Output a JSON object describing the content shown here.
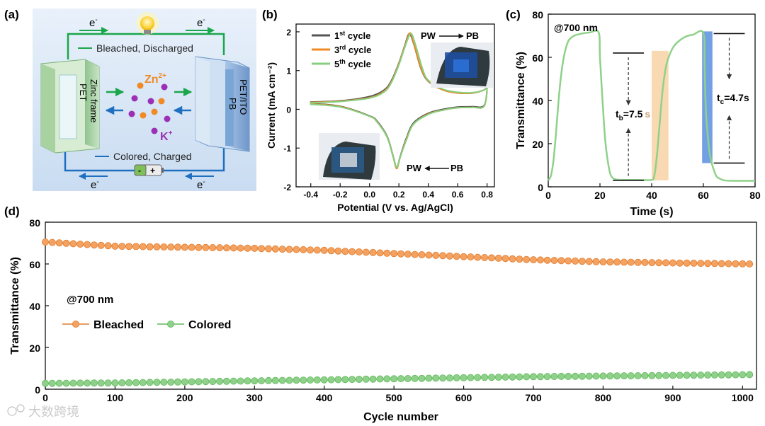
{
  "panels": {
    "a": {
      "label": "(a)",
      "electron": "e",
      "electron_sup": "-",
      "bleached_text": "Bleached, Discharged",
      "colored_text": "Colored, Charged",
      "left_electrode_1": "Zinc frame",
      "left_electrode_2": "PET",
      "right_electrode_1": "PET/ITO",
      "right_electrode_2": "PB",
      "zn_ion": "Zn",
      "zn_sup": "2+",
      "k_ion": "K",
      "k_sup": "+",
      "battery_minus": "-",
      "battery_plus": "+"
    },
    "b": {
      "label": "(b)",
      "annot_top": "PW",
      "annot_top_to": "PB",
      "annot_bottom": "PW",
      "annot_bottom_from": "PB"
    },
    "c": {
      "label": "(c)",
      "wavelength": "@700 nm",
      "tb_label": "t",
      "tb_sub": "b",
      "tb_value": "=7.5",
      "tb_unit": "s",
      "tc_label": "t",
      "tc_sub": "c",
      "tc_value": "=4.7s"
    },
    "d": {
      "label": "(d)",
      "wavelength": "@700 nm"
    }
  },
  "colors": {
    "bleached": "#f4a261",
    "colored": "#8fd18a",
    "cycle1": "#555555",
    "cycle3": "#f08a24",
    "cycle5": "#86cf7e",
    "blue_band": "#5b8fe0",
    "orange_band": "#f8cf9e",
    "circuit_green": "#1aa64a",
    "circuit_blue": "#1f6fc1"
  },
  "watermark": "大数跨境",
  "chart_data": [
    {
      "id": "b",
      "type": "line",
      "xlabel": "Potential (V vs. Ag/AgCl)",
      "ylabel": "Current  (mA cm⁻²)",
      "xlim": [
        -0.5,
        0.85
      ],
      "ylim": [
        -2.0,
        2.2
      ],
      "xticks": [
        "-0.4",
        "-0.2",
        "0.0",
        "0.2",
        "0.4",
        "0.6",
        "0.8"
      ],
      "xtick_values": [
        -0.4,
        -0.2,
        0.0,
        0.2,
        0.4,
        0.6,
        0.8
      ],
      "yticks": [
        "-2",
        "-1",
        "0",
        "1",
        "2"
      ],
      "ytick_values": [
        -2,
        -1,
        0,
        1,
        2
      ],
      "legend": [
        {
          "name": "1",
          "sup": "st",
          "rest": " cycle"
        },
        {
          "name": "3",
          "sup": "rd",
          "rest": " cycle"
        },
        {
          "name": "5",
          "sup": "th",
          "rest": " cycle"
        }
      ],
      "series": [
        {
          "name": "1st cycle",
          "points": [
            [
              -0.4,
              0.19
            ],
            [
              -0.2,
              0.22
            ],
            [
              0.0,
              0.33
            ],
            [
              0.1,
              0.5
            ],
            [
              0.15,
              0.75
            ],
            [
              0.2,
              1.2
            ],
            [
              0.24,
              1.65
            ],
            [
              0.27,
              1.95
            ],
            [
              0.3,
              1.7
            ],
            [
              0.35,
              1.05
            ],
            [
              0.4,
              0.72
            ],
            [
              0.5,
              0.5
            ],
            [
              0.6,
              0.42
            ],
            [
              0.7,
              0.42
            ],
            [
              0.78,
              0.5
            ],
            [
              0.8,
              0.58
            ],
            [
              0.78,
              0.1
            ],
            [
              0.7,
              0.07
            ],
            [
              0.6,
              0.06
            ],
            [
              0.5,
              0.0
            ],
            [
              0.4,
              -0.1
            ],
            [
              0.3,
              -0.35
            ],
            [
              0.25,
              -0.75
            ],
            [
              0.21,
              -1.2
            ],
            [
              0.185,
              -1.5
            ],
            [
              0.16,
              -1.2
            ],
            [
              0.12,
              -0.7
            ],
            [
              0.05,
              -0.3
            ],
            [
              0.0,
              -0.17
            ],
            [
              -0.2,
              0.08
            ],
            [
              -0.4,
              0.15
            ]
          ]
        },
        {
          "name": "3rd cycle",
          "points": [
            [
              -0.4,
              0.18
            ],
            [
              -0.2,
              0.21
            ],
            [
              0.0,
              0.3
            ],
            [
              0.1,
              0.47
            ],
            [
              0.15,
              0.72
            ],
            [
              0.2,
              1.18
            ],
            [
              0.24,
              1.63
            ],
            [
              0.275,
              1.97
            ],
            [
              0.3,
              1.72
            ],
            [
              0.35,
              1.07
            ],
            [
              0.4,
              0.73
            ],
            [
              0.5,
              0.5
            ],
            [
              0.6,
              0.42
            ],
            [
              0.7,
              0.42
            ],
            [
              0.78,
              0.5
            ],
            [
              0.8,
              0.58
            ],
            [
              0.78,
              0.08
            ],
            [
              0.7,
              0.05
            ],
            [
              0.6,
              0.04
            ],
            [
              0.5,
              -0.02
            ],
            [
              0.4,
              -0.12
            ],
            [
              0.3,
              -0.38
            ],
            [
              0.25,
              -0.78
            ],
            [
              0.21,
              -1.22
            ],
            [
              0.185,
              -1.53
            ],
            [
              0.16,
              -1.22
            ],
            [
              0.12,
              -0.72
            ],
            [
              0.05,
              -0.32
            ],
            [
              0.0,
              -0.18
            ],
            [
              -0.2,
              0.07
            ],
            [
              -0.4,
              0.14
            ]
          ]
        },
        {
          "name": "5th cycle",
          "points": [
            [
              -0.4,
              0.17
            ],
            [
              -0.2,
              0.2
            ],
            [
              0.0,
              0.29
            ],
            [
              0.1,
              0.45
            ],
            [
              0.15,
              0.7
            ],
            [
              0.2,
              1.15
            ],
            [
              0.24,
              1.6
            ],
            [
              0.28,
              1.95
            ],
            [
              0.31,
              1.7
            ],
            [
              0.36,
              1.05
            ],
            [
              0.4,
              0.75
            ],
            [
              0.5,
              0.52
            ],
            [
              0.6,
              0.44
            ],
            [
              0.7,
              0.43
            ],
            [
              0.78,
              0.5
            ],
            [
              0.8,
              0.58
            ],
            [
              0.78,
              0.08
            ],
            [
              0.7,
              0.05
            ],
            [
              0.6,
              0.04
            ],
            [
              0.5,
              -0.02
            ],
            [
              0.4,
              -0.13
            ],
            [
              0.3,
              -0.38
            ],
            [
              0.25,
              -0.8
            ],
            [
              0.21,
              -1.22
            ],
            [
              0.185,
              -1.5
            ],
            [
              0.16,
              -1.22
            ],
            [
              0.12,
              -0.72
            ],
            [
              0.05,
              -0.32
            ],
            [
              0.0,
              -0.18
            ],
            [
              -0.2,
              0.06
            ],
            [
              -0.4,
              0.13
            ]
          ]
        }
      ]
    },
    {
      "id": "c",
      "type": "line",
      "xlabel": "Time (s)",
      "ylabel": "Transmittance (%)",
      "xlim": [
        0,
        80
      ],
      "ylim": [
        0,
        80
      ],
      "xticks": [
        "0",
        "20",
        "40",
        "60",
        "80"
      ],
      "xtick_values": [
        0,
        20,
        40,
        60,
        80
      ],
      "yticks": [
        "0",
        "20",
        "40",
        "60",
        "80"
      ],
      "ytick_values": [
        0,
        20,
        40,
        60,
        80
      ],
      "series": [
        {
          "name": "",
          "points": [
            [
              0,
              3
            ],
            [
              1,
              5
            ],
            [
              2,
              12
            ],
            [
              3,
              25
            ],
            [
              4,
              40
            ],
            [
              5,
              52
            ],
            [
              6,
              60
            ],
            [
              7,
              65
            ],
            [
              8,
              68
            ],
            [
              10,
              70
            ],
            [
              13,
              71
            ],
            [
              16,
              71.5
            ],
            [
              19.5,
              71.5
            ],
            [
              20,
              60
            ],
            [
              21,
              40
            ],
            [
              22,
              22
            ],
            [
              23,
              12
            ],
            [
              24,
              6
            ],
            [
              25,
              4
            ],
            [
              26,
              3.5
            ],
            [
              28,
              3.2
            ],
            [
              35,
              3.2
            ],
            [
              40,
              3.2
            ],
            [
              41,
              5
            ],
            [
              42,
              14
            ],
            [
              43,
              28
            ],
            [
              44,
              42
            ],
            [
              45,
              52
            ],
            [
              46,
              58
            ],
            [
              48,
              64
            ],
            [
              50,
              67
            ],
            [
              53,
              69.5
            ],
            [
              56,
              70.5
            ],
            [
              60,
              71.2
            ],
            [
              60.5,
              55
            ],
            [
              61,
              35
            ],
            [
              62,
              20
            ],
            [
              63,
              12
            ],
            [
              64,
              8
            ],
            [
              65,
              5
            ],
            [
              66,
              4
            ],
            [
              68,
              3
            ],
            [
              72,
              2.8
            ],
            [
              80,
              2.8
            ]
          ]
        }
      ],
      "bands": [
        {
          "x": [
            40,
            46.5
          ],
          "y": [
            3,
            63
          ],
          "color": "orange"
        },
        {
          "x": [
            59.5,
            63.5
          ],
          "y": [
            11,
            72
          ],
          "color": "blue"
        }
      ],
      "annotations": [
        {
          "text": "tb=7.5 s",
          "x_range": [
            40,
            47.5
          ]
        },
        {
          "text": "tc=4.7s",
          "x_range": [
            60,
            64.7
          ]
        }
      ]
    },
    {
      "id": "d",
      "type": "scatter",
      "xlabel": "Cycle number",
      "ylabel": "Transmittance (%)",
      "xlim": [
        0,
        1020
      ],
      "ylim": [
        0,
        80
      ],
      "xticks": [
        "0",
        "100",
        "200",
        "300",
        "400",
        "500",
        "600",
        "700",
        "800",
        "900",
        "1000"
      ],
      "xtick_values": [
        0,
        100,
        200,
        300,
        400,
        500,
        600,
        700,
        800,
        900,
        1000
      ],
      "yticks": [
        "0",
        "20",
        "40",
        "60",
        "80"
      ],
      "ytick_values": [
        0,
        20,
        40,
        60,
        80
      ],
      "legend": [
        "Bleached",
        "Colored"
      ],
      "series": [
        {
          "name": "Bleached",
          "x_start": 0,
          "x_step": 10,
          "count": 102,
          "y_points": [
            [
              0,
              70.5
            ],
            [
              100,
              68.5
            ],
            [
              200,
              68
            ],
            [
              300,
              67.5
            ],
            [
              400,
              66.5
            ],
            [
              500,
              65
            ],
            [
              600,
              63.5
            ],
            [
              700,
              62
            ],
            [
              800,
              61
            ],
            [
              900,
              60.5
            ],
            [
              1010,
              60
            ]
          ]
        },
        {
          "name": "Colored",
          "x_start": 0,
          "x_step": 10,
          "count": 102,
          "y_points": [
            [
              0,
              2.8
            ],
            [
              100,
              3
            ],
            [
              200,
              3.5
            ],
            [
              300,
              4
            ],
            [
              400,
              4.5
            ],
            [
              500,
              5
            ],
            [
              600,
              5.5
            ],
            [
              700,
              6
            ],
            [
              800,
              6.3
            ],
            [
              900,
              6.6
            ],
            [
              1010,
              7
            ]
          ]
        }
      ]
    }
  ]
}
